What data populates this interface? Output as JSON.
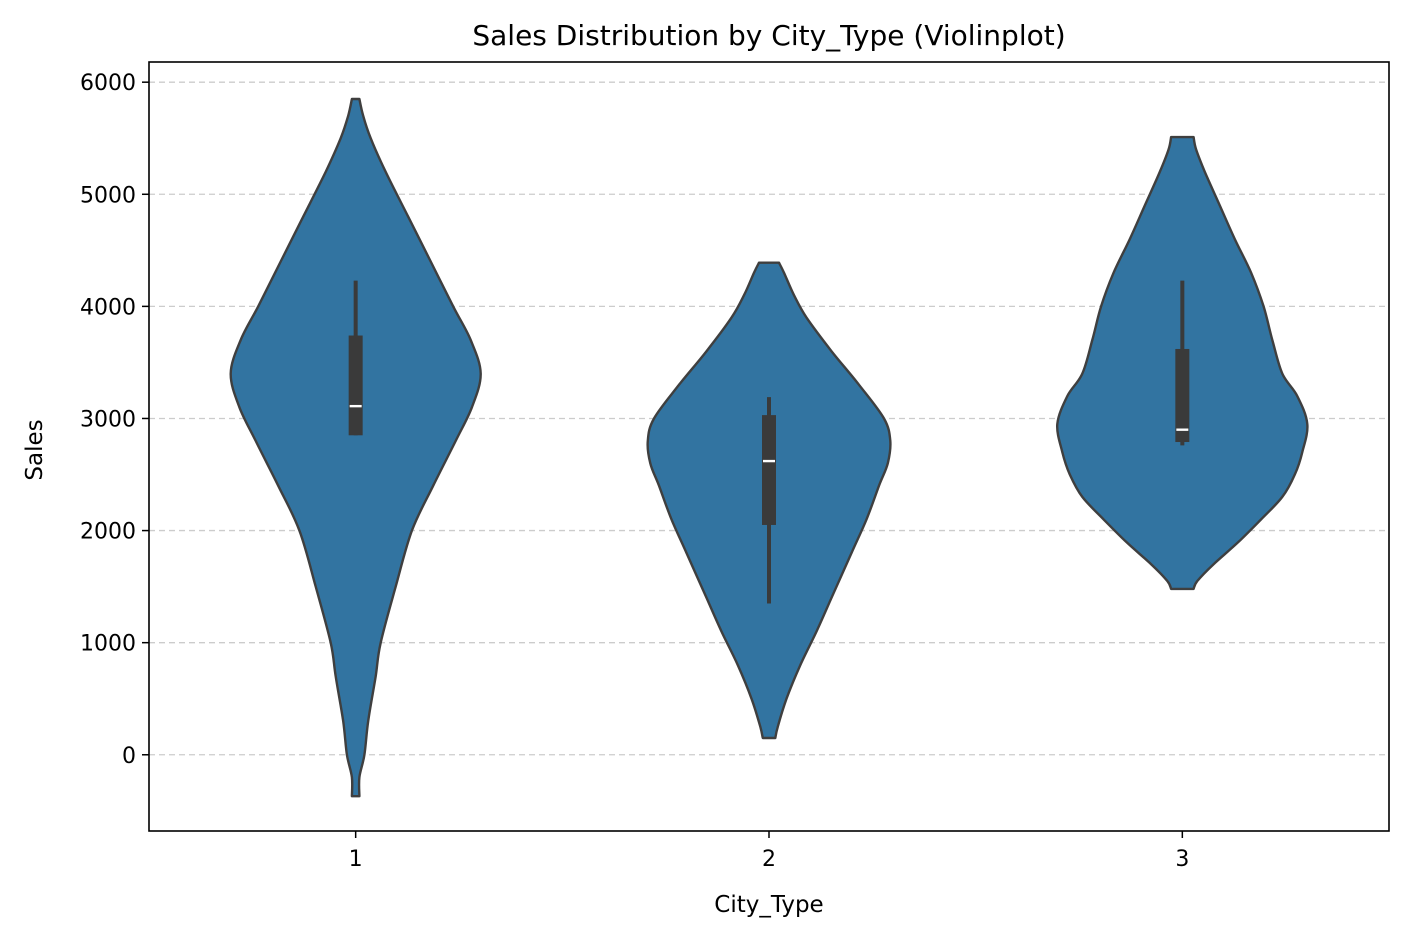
{
  "chart_data": {
    "type": "violin",
    "title": "Sales Distribution by City_Type (Violinplot)",
    "xlabel": "City_Type",
    "ylabel": "Sales",
    "categories": [
      "1",
      "2",
      "3"
    ],
    "ylim": [
      -680,
      6180
    ],
    "yticks": [
      0,
      1000,
      2000,
      3000,
      4000,
      5000,
      6000
    ],
    "grid": {
      "axis": "y",
      "style": "dashed"
    },
    "colors": {
      "fill": "#3274a1",
      "outline": "#3f3f3f",
      "box": "#3a3a3a",
      "median": "#ffffff",
      "grid": "#cccccc"
    },
    "series": [
      {
        "category": "1",
        "violin_min": -370,
        "violin_max": 5850,
        "whisker_low": 2850,
        "q1": 2850,
        "median": 3110,
        "q3": 3740,
        "whisker_high": 4230,
        "density": [
          [
            -370,
            0.03
          ],
          [
            -200,
            0.03
          ],
          [
            0,
            0.07
          ],
          [
            300,
            0.1
          ],
          [
            700,
            0.16
          ],
          [
            1000,
            0.2
          ],
          [
            1500,
            0.32
          ],
          [
            2000,
            0.45
          ],
          [
            2400,
            0.62
          ],
          [
            2800,
            0.8
          ],
          [
            3100,
            0.93
          ],
          [
            3400,
            1.0
          ],
          [
            3700,
            0.92
          ],
          [
            4000,
            0.78
          ],
          [
            4400,
            0.6
          ],
          [
            4800,
            0.42
          ],
          [
            5200,
            0.24
          ],
          [
            5500,
            0.12
          ],
          [
            5700,
            0.06
          ],
          [
            5850,
            0.03
          ]
        ]
      },
      {
        "category": "2",
        "violin_min": 150,
        "violin_max": 4390,
        "whisker_low": 1350,
        "q1": 2050,
        "median": 2620,
        "q3": 3030,
        "whisker_high": 3190,
        "density": [
          [
            150,
            0.05
          ],
          [
            250,
            0.07
          ],
          [
            500,
            0.14
          ],
          [
            800,
            0.25
          ],
          [
            1100,
            0.38
          ],
          [
            1400,
            0.5
          ],
          [
            1800,
            0.66
          ],
          [
            2100,
            0.78
          ],
          [
            2400,
            0.88
          ],
          [
            2600,
            0.95
          ],
          [
            2800,
            0.97
          ],
          [
            3000,
            0.92
          ],
          [
            3300,
            0.72
          ],
          [
            3600,
            0.5
          ],
          [
            3900,
            0.3
          ],
          [
            4100,
            0.2
          ],
          [
            4300,
            0.12
          ],
          [
            4390,
            0.08
          ]
        ]
      },
      {
        "category": "3",
        "violin_min": 1480,
        "violin_max": 5510,
        "whisker_low": 2760,
        "q1": 2790,
        "median": 2900,
        "q3": 3620,
        "whisker_high": 4230,
        "density": [
          [
            1480,
            0.09
          ],
          [
            1550,
            0.12
          ],
          [
            1700,
            0.25
          ],
          [
            1900,
            0.45
          ],
          [
            2100,
            0.63
          ],
          [
            2300,
            0.8
          ],
          [
            2500,
            0.9
          ],
          [
            2700,
            0.96
          ],
          [
            2950,
            1.0
          ],
          [
            3200,
            0.92
          ],
          [
            3400,
            0.8
          ],
          [
            3700,
            0.72
          ],
          [
            4000,
            0.65
          ],
          [
            4300,
            0.55
          ],
          [
            4600,
            0.42
          ],
          [
            4900,
            0.3
          ],
          [
            5200,
            0.18
          ],
          [
            5400,
            0.11
          ],
          [
            5510,
            0.09
          ]
        ]
      }
    ]
  }
}
